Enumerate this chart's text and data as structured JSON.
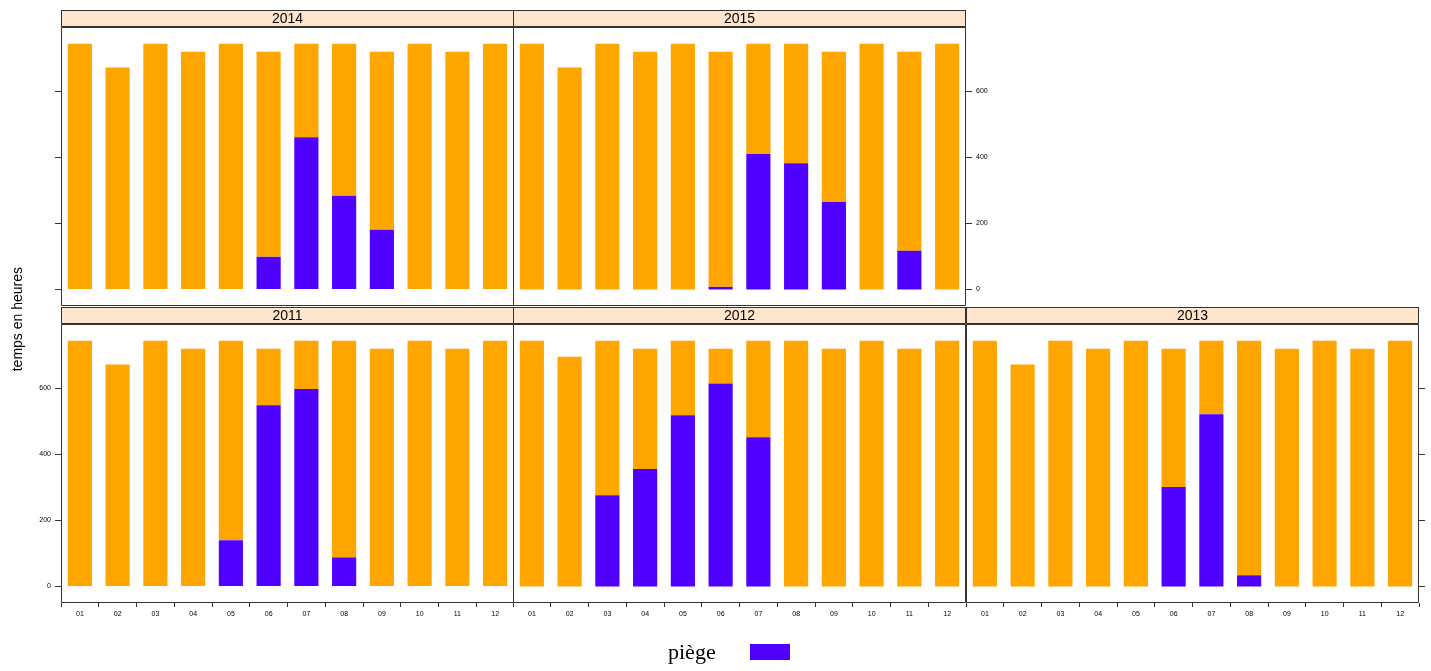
{
  "chart_data": [
    {
      "type": "bar",
      "title": "2014",
      "stacked": true,
      "tick_labels": false,
      "grid": false,
      "legend": false,
      "categories": [
        "01",
        "02",
        "03",
        "04",
        "05",
        "06",
        "07",
        "08",
        "09",
        "10",
        "11",
        "12"
      ],
      "ylim": [
        -50,
        795
      ],
      "yticks": [
        0,
        200,
        400,
        600
      ],
      "series": [
        {
          "color": "#5000ff",
          "values": [
            0,
            0,
            0,
            0,
            0,
            99,
            461,
            284,
            181,
            0,
            0,
            0
          ]
        },
        {
          "color": "#ffa500",
          "values": [
            744,
            672,
            744,
            720,
            744,
            621,
            283,
            460,
            539,
            744,
            720,
            744
          ]
        }
      ]
    },
    {
      "type": "bar",
      "title": "2015",
      "stacked": true,
      "tick_labels": "y",
      "grid": false,
      "legend": false,
      "categories": [
        "01",
        "02",
        "03",
        "04",
        "05",
        "06",
        "07",
        "08",
        "09",
        "10",
        "11",
        "12"
      ],
      "ylim": [
        -50,
        795
      ],
      "yticks": [
        0,
        200,
        400,
        600
      ],
      "series": [
        {
          "color": "#5000ff",
          "values": [
            0,
            0,
            0,
            0,
            0,
            8,
            410,
            382,
            265,
            0,
            117,
            0
          ]
        },
        {
          "color": "#ffa500",
          "values": [
            744,
            672,
            744,
            720,
            744,
            712,
            334,
            362,
            455,
            744,
            603,
            744
          ]
        }
      ]
    },
    {
      "type": "bar",
      "title": "2011",
      "ylabel": "temps en heures",
      "stacked": true,
      "grid": false,
      "legend": false,
      "categories": [
        "01",
        "02",
        "03",
        "04",
        "05",
        "06",
        "07",
        "08",
        "09",
        "10",
        "11",
        "12"
      ],
      "ylim": [
        -50,
        795
      ],
      "yticks": [
        0,
        200,
        400,
        600
      ],
      "series": [
        {
          "color": "#5000ff",
          "values": [
            0,
            0,
            0,
            0,
            140,
            549,
            598,
            88,
            0,
            0,
            0,
            0
          ]
        },
        {
          "color": "#ffa500",
          "values": [
            744,
            672,
            744,
            720,
            604,
            171,
            146,
            656,
            720,
            744,
            720,
            744
          ]
        }
      ]
    },
    {
      "type": "bar",
      "title": "2012",
      "stacked": true,
      "tick_labels": "x",
      "grid": false,
      "legend": "bottom",
      "categories": [
        "01",
        "02",
        "03",
        "04",
        "05",
        "06",
        "07",
        "08",
        "09",
        "10",
        "11",
        "12"
      ],
      "ylim": [
        -50,
        795
      ],
      "yticks": [
        0,
        200,
        400,
        600
      ],
      "series": [
        {
          "name": "piège",
          "color": "#5000ff",
          "values": [
            0,
            0,
            276,
            356,
            519,
            615,
            452,
            0,
            0,
            0,
            0,
            0
          ]
        },
        {
          "color": "#ffa500",
          "values": [
            744,
            696,
            468,
            364,
            225,
            105,
            292,
            744,
            720,
            744,
            720,
            744
          ]
        }
      ]
    },
    {
      "type": "bar",
      "title": "2013",
      "stacked": true,
      "tick_labels": "x",
      "grid": false,
      "legend": false,
      "categories": [
        "01",
        "02",
        "03",
        "04",
        "05",
        "06",
        "07",
        "08",
        "09",
        "10",
        "11",
        "12"
      ],
      "ylim": [
        -50,
        795
      ],
      "yticks": [
        0,
        200,
        400,
        600
      ],
      "series": [
        {
          "color": "#5000ff",
          "values": [
            0,
            0,
            0,
            0,
            0,
            301,
            522,
            34,
            0,
            0,
            0,
            0
          ]
        },
        {
          "color": "#ffa500",
          "values": [
            744,
            672,
            744,
            720,
            744,
            419,
            222,
            710,
            720,
            744,
            720,
            744
          ]
        }
      ]
    }
  ]
}
